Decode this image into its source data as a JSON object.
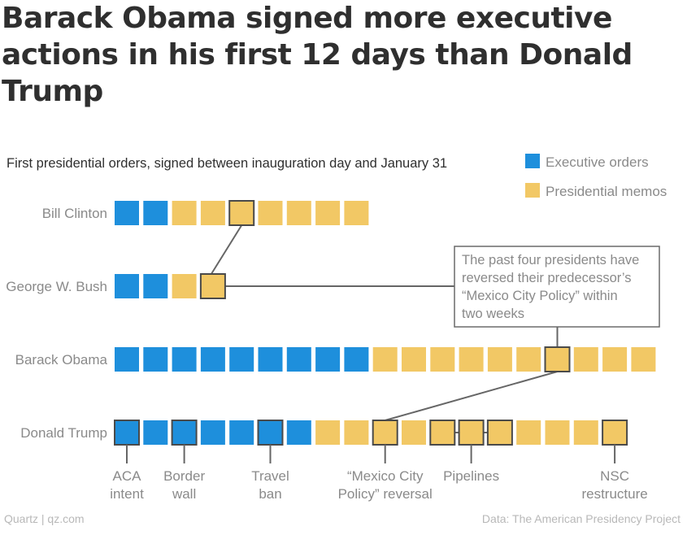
{
  "title_lines": [
    "Barack Obama signed more executive",
    "actions in his first 12 days than Donald",
    "Trump"
  ],
  "chart_data": {
    "type": "waffle",
    "subtitle": "First presidential orders, signed between inauguration day and January 31",
    "legend": [
      {
        "label": "Executive orders",
        "color": "#1e8fdc"
      },
      {
        "label": "Presidential memos",
        "color": "#f2c865"
      }
    ],
    "series": [
      {
        "name": "Bill Clinton",
        "executive_orders": 2,
        "presidential_memos": 7,
        "highlighted": [
          4
        ]
      },
      {
        "name": "George W. Bush",
        "executive_orders": 2,
        "presidential_memos": 2,
        "highlighted": [
          3
        ]
      },
      {
        "name": "Barack Obama",
        "executive_orders": 9,
        "presidential_memos": 10,
        "highlighted": [
          15
        ]
      },
      {
        "name": "Donald Trump",
        "executive_orders": 7,
        "presidential_memos": 11,
        "highlighted": [
          0,
          2,
          5,
          9,
          11,
          12,
          13,
          17
        ]
      }
    ],
    "annotation": {
      "lines": [
        "The past four presidents have",
        "reversed their predecessor’s",
        "“Mexico City Policy” within",
        "two weeks"
      ]
    },
    "labels": [
      {
        "lines": [
          "ACA",
          "intent"
        ],
        "squares": [
          0
        ]
      },
      {
        "lines": [
          "Border",
          "wall"
        ],
        "squares": [
          2
        ]
      },
      {
        "lines": [
          "Travel",
          "ban"
        ],
        "squares": [
          5
        ]
      },
      {
        "lines": [
          "“Mexico City",
          "Policy” reversal"
        ],
        "squares": [
          9
        ]
      },
      {
        "lines": [
          "Pipelines"
        ],
        "squares": [
          11,
          12,
          13
        ]
      },
      {
        "lines": [
          "NSC",
          "restructure"
        ],
        "squares": [
          17
        ]
      }
    ],
    "source": "Data: The American Presidency Project"
  },
  "footer": {
    "brand": "Quartz | qz.com"
  }
}
